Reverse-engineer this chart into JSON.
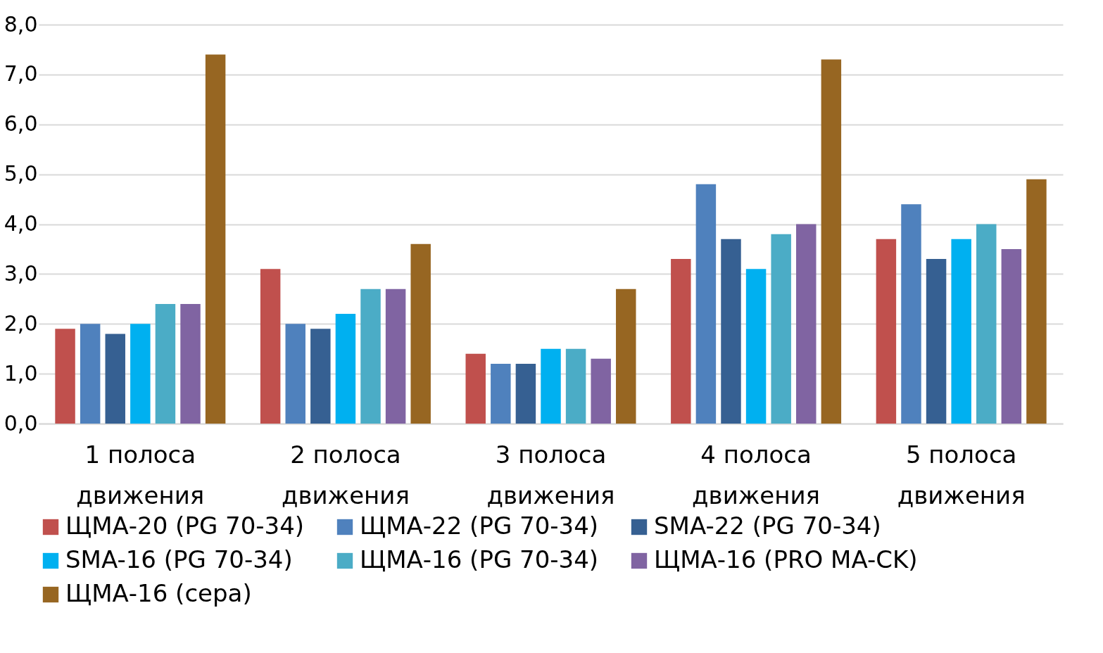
{
  "chart_data": {
    "type": "bar",
    "categories": [
      "1 полоса движения",
      "2 полоса движения",
      "3 полоса движения",
      "4 полоса движения",
      "5 полоса движения"
    ],
    "series": [
      {
        "name": "ЩМА-20 (PG 70-34)",
        "color": "#c0504d",
        "values": [
          1.9,
          3.1,
          1.4,
          3.3,
          3.7
        ]
      },
      {
        "name": "ЩМА-22 (PG 70-34)",
        "color": "#4f81bd",
        "values": [
          2.0,
          2.0,
          1.2,
          4.8,
          4.4
        ]
      },
      {
        "name": "SMA-22 (PG 70-34)",
        "color": "#366092",
        "values": [
          1.8,
          1.9,
          1.2,
          3.7,
          3.3
        ]
      },
      {
        "name": "SMA-16 (PG 70-34)",
        "color": "#00b0f0",
        "values": [
          2.0,
          2.2,
          1.5,
          3.1,
          3.7
        ]
      },
      {
        "name": "ЩМА-16 (PG 70-34)",
        "color": "#4bacc6",
        "values": [
          2.4,
          2.7,
          1.5,
          3.8,
          4.0
        ]
      },
      {
        "name": "ЩМА-16 (PRO MA-CK)",
        "color": "#8064a2",
        "values": [
          2.4,
          2.7,
          1.3,
          4.0,
          3.5
        ]
      },
      {
        "name": "ЩМА-16 (сера)",
        "color": "#976622",
        "values": [
          7.4,
          3.6,
          2.7,
          7.3,
          4.9
        ]
      }
    ],
    "ylim": [
      0,
      8
    ],
    "yticks": [
      {
        "value": 0,
        "label": "0,0"
      },
      {
        "value": 1,
        "label": "1,0"
      },
      {
        "value": 2,
        "label": "2,0"
      },
      {
        "value": 3,
        "label": "3,0"
      },
      {
        "value": 4,
        "label": "4,0"
      },
      {
        "value": 5,
        "label": "5,0"
      },
      {
        "value": 6,
        "label": "6,0"
      },
      {
        "value": 7,
        "label": "7,0"
      },
      {
        "value": 8,
        "label": "8,0"
      }
    ],
    "grid": "y",
    "legend": "bottom"
  }
}
